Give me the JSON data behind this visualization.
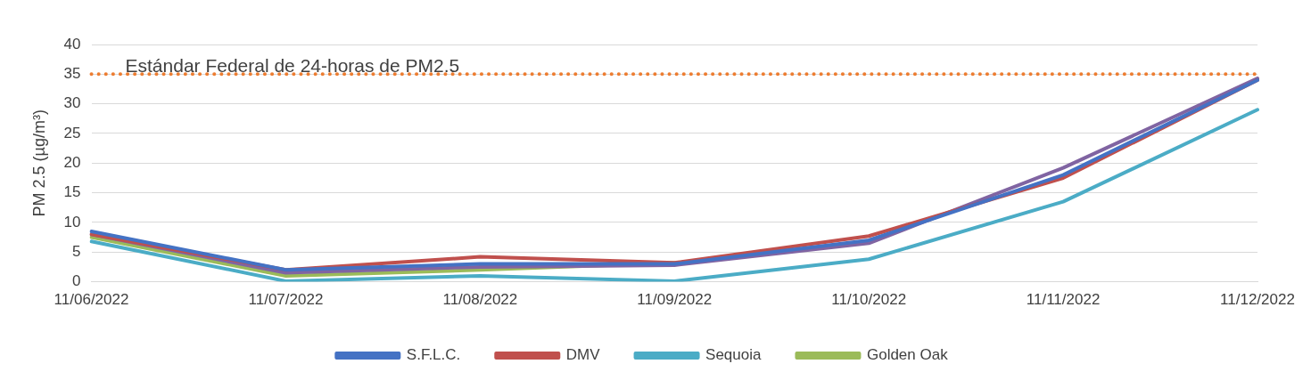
{
  "chart_data": {
    "type": "line",
    "ylabel": "PM 2.5 (µg/m³)",
    "categories": [
      "11/06/2022",
      "11/07/2022",
      "11/08/2022",
      "11/09/2022",
      "11/10/2022",
      "11/11/2022",
      "11/12/2022"
    ],
    "series": [
      {
        "name": "S.F.L.C.",
        "color": "#4472c4",
        "values": [
          8.5,
          2,
          3,
          3,
          7,
          18,
          34
        ]
      },
      {
        "name": "DMV",
        "color": "#c0504d",
        "values": [
          8,
          2,
          4.2,
          3.2,
          7.7,
          17.5,
          34
        ]
      },
      {
        "color": "#8064a2",
        "values": [
          8,
          1.5,
          2.5,
          2.8,
          6.5,
          19.2,
          34.3
        ]
      },
      {
        "name": "Sequoia",
        "color": "#4bacc6",
        "values": [
          6.8,
          0.1,
          1,
          0.1,
          3.8,
          13.5,
          29
        ]
      },
      {
        "name": "Golden Oak",
        "color": "#9bbb59",
        "values": [
          7.5,
          1,
          2,
          3.2,
          null,
          null,
          null
        ]
      }
    ],
    "ylim": [
      0,
      40
    ],
    "yticks": [
      0,
      5,
      10,
      15,
      20,
      25,
      30,
      35,
      40
    ],
    "grid": "y",
    "legend": "bottom",
    "marker": "none",
    "line_style": "solid",
    "ref_lines": [
      {
        "axis": "y",
        "value": 35,
        "label": "Estándar Federal de 24-horas de PM2.5",
        "color": "#ed7d31",
        "line_style": "dotted"
      }
    ]
  }
}
